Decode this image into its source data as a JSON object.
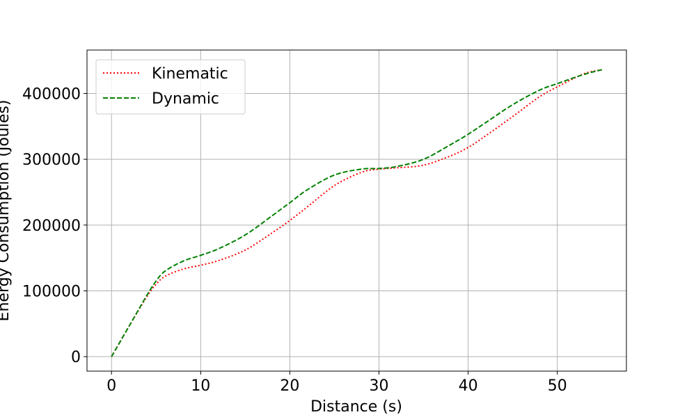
{
  "chart_data": {
    "type": "line",
    "title": "",
    "xlabel": "Distance (s)",
    "ylabel": "Energy Consumption (Joules)",
    "xlim": [
      -2.75,
      57.75
    ],
    "ylim": [
      -22000,
      466000
    ],
    "xticks": [
      0,
      10,
      20,
      30,
      40,
      50
    ],
    "yticks": [
      0,
      100000,
      200000,
      300000,
      400000
    ],
    "xtick_labels": [
      "0",
      "10",
      "20",
      "30",
      "40",
      "50"
    ],
    "ytick_labels": [
      "0",
      "100000",
      "200000",
      "300000",
      "400000"
    ],
    "grid": true,
    "legend_position": "upper-left",
    "series": [
      {
        "name": "Kinematic",
        "color": "#ff0000",
        "style": "dotted",
        "x": [
          0,
          2,
          4,
          5,
          6,
          8,
          10,
          12,
          15,
          18,
          20,
          22,
          25,
          28,
          30,
          32,
          35,
          38,
          40,
          42,
          45,
          48,
          50,
          53,
          55
        ],
        "y": [
          0,
          47000,
          92000,
          110000,
          122000,
          133000,
          139000,
          146000,
          162000,
          188000,
          207000,
          228000,
          260000,
          280000,
          285000,
          287000,
          291000,
          305000,
          318000,
          336000,
          365000,
          395000,
          410000,
          430000,
          436000
        ]
      },
      {
        "name": "Dynamic",
        "color": "#008000",
        "style": "dashed",
        "x": [
          0,
          2,
          4,
          5,
          6,
          8,
          10,
          12,
          15,
          18,
          20,
          22,
          25,
          28,
          30,
          32,
          35,
          38,
          40,
          42,
          45,
          48,
          50,
          53,
          55
        ],
        "y": [
          0,
          47000,
          94000,
          115000,
          130000,
          145000,
          154000,
          164000,
          185000,
          214000,
          234000,
          254000,
          276000,
          285000,
          286000,
          289000,
          300000,
          322000,
          338000,
          356000,
          383000,
          405000,
          415000,
          429000,
          436000
        ]
      }
    ]
  }
}
